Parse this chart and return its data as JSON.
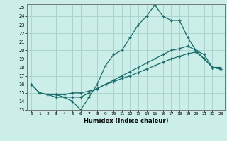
{
  "xlabel": "Humidex (Indice chaleur)",
  "background_color": "#cceee8",
  "grid_color": "#aad4ce",
  "line_color": "#1a6b6b",
  "xlim": [
    -0.5,
    23.5
  ],
  "ylim": [
    13,
    25.4
  ],
  "xticks": [
    0,
    1,
    2,
    3,
    4,
    5,
    6,
    7,
    8,
    9,
    10,
    11,
    12,
    13,
    14,
    15,
    16,
    17,
    18,
    19,
    20,
    21,
    22,
    23
  ],
  "yticks": [
    13,
    14,
    15,
    16,
    17,
    18,
    19,
    20,
    21,
    22,
    23,
    24,
    25
  ],
  "series": [
    [
      16,
      15,
      14.8,
      14.5,
      14.5,
      14,
      13,
      14.5,
      16,
      18.2,
      19.5,
      20,
      21.5,
      23,
      24,
      25.3,
      24,
      23.5,
      23.5,
      21.5,
      20,
      19,
      18,
      18
    ],
    [
      16,
      15,
      14.8,
      14.8,
      14.5,
      14.5,
      14.5,
      15,
      15.5,
      16,
      16.5,
      17,
      17.5,
      18,
      18.5,
      19,
      19.5,
      20,
      20.2,
      20.5,
      20,
      19.5,
      18,
      17.8
    ],
    [
      16,
      15,
      14.8,
      14.8,
      14.8,
      15,
      15,
      15.2,
      15.5,
      16,
      16.3,
      16.7,
      17,
      17.4,
      17.8,
      18.2,
      18.6,
      19,
      19.3,
      19.6,
      19.8,
      19,
      18,
      17.8
    ]
  ]
}
